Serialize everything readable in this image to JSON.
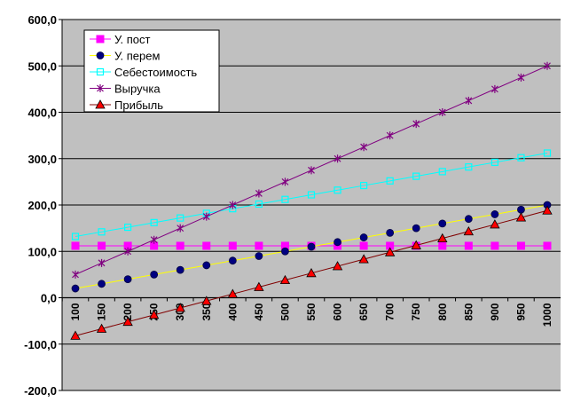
{
  "chart_data": {
    "type": "line",
    "title": "",
    "xlabel": "",
    "ylabel": "",
    "ylim": [
      -200,
      600
    ],
    "yticks": [
      -200,
      -100,
      0,
      100,
      200,
      300,
      400,
      500,
      600
    ],
    "ytick_labels": [
      "-200,0",
      "-100,0",
      "0,0",
      "100,0",
      "200,0",
      "300,0",
      "400,0",
      "500,0",
      "600,0"
    ],
    "grid": true,
    "legend": "top-left",
    "categories": [
      "100",
      "150",
      "200",
      "250",
      "300",
      "350",
      "400",
      "450",
      "500",
      "550",
      "600",
      "650",
      "700",
      "750",
      "800",
      "850",
      "900",
      "950",
      "1000"
    ],
    "series": [
      {
        "name": "У. пост",
        "color": "#ff00ff",
        "marker": "square",
        "values": [
          112,
          112,
          112,
          112,
          112,
          112,
          112,
          112,
          112,
          112,
          112,
          112,
          112,
          112,
          112,
          112,
          112,
          112,
          112
        ]
      },
      {
        "name": "У. перем",
        "color": "#000080",
        "line_color": "#ffff00",
        "marker": "circle",
        "values": [
          20,
          30,
          40,
          50,
          60,
          70,
          80,
          90,
          100,
          110,
          120,
          130,
          140,
          150,
          160,
          170,
          180,
          190,
          200
        ]
      },
      {
        "name": "Себестоимость",
        "color": "#00ffff",
        "marker": "open-square",
        "values": [
          132,
          142,
          152,
          162,
          172,
          182,
          192,
          202,
          212,
          222,
          232,
          242,
          252,
          262,
          272,
          282,
          292,
          302,
          312
        ]
      },
      {
        "name": "Выручка",
        "color": "#800080",
        "marker": "star",
        "values": [
          50,
          75,
          100,
          125,
          150,
          175,
          200,
          225,
          250,
          275,
          300,
          325,
          350,
          375,
          400,
          425,
          450,
          475,
          500
        ]
      },
      {
        "name": "Прибыль",
        "color": "#800000",
        "fill": "#ff0000",
        "marker": "triangle",
        "values": [
          -82,
          -67,
          -52,
          -37,
          -22,
          -7,
          8,
          23,
          38,
          53,
          68,
          83,
          98,
          113,
          128,
          143,
          158,
          173,
          188
        ]
      }
    ]
  }
}
